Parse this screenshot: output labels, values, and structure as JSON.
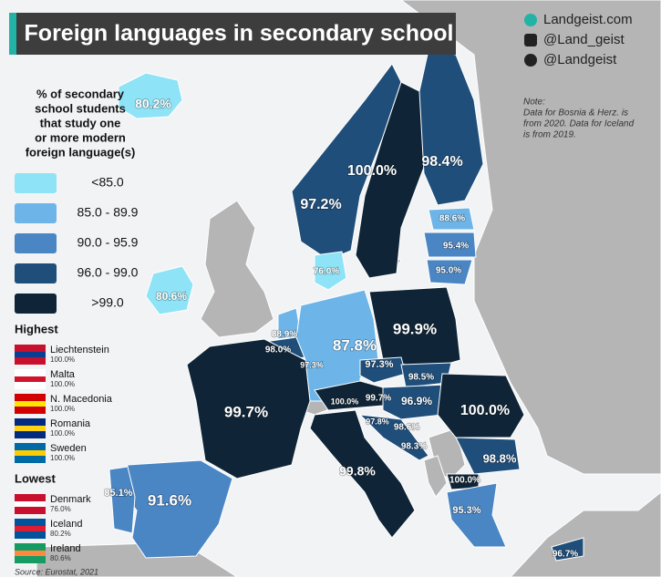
{
  "header": {
    "title": "Foreign languages in secondary school",
    "website": "Landgeist.com",
    "instagram": "@Land_geist",
    "twitter": "@Landgeist"
  },
  "note": [
    "Note:",
    "Data for Bosnia & Herz. is",
    "from 2020. Data for Iceland",
    "is from 2019."
  ],
  "legend": {
    "title": [
      "% of secondary",
      "school students",
      "that study one",
      "or more modern",
      "foreign language(s)"
    ],
    "items": [
      "<85.0",
      "85.0 - 89.9",
      "90.0 - 95.9",
      "96.0 - 99.0",
      ">99.0"
    ]
  },
  "highest": {
    "title": "Highest",
    "items": [
      {
        "name": "Liechtenstein",
        "value": "100.0%"
      },
      {
        "name": "Malta",
        "value": "100.0%"
      },
      {
        "name": "N. Macedonia",
        "value": "100.0%"
      },
      {
        "name": "Romania",
        "value": "100.0%"
      },
      {
        "name": "Sweden",
        "value": "100.0%"
      }
    ]
  },
  "lowest": {
    "title": "Lowest",
    "items": [
      {
        "name": "Denmark",
        "value": "76.0%"
      },
      {
        "name": "Iceland",
        "value": "80.2%"
      },
      {
        "name": "Ireland",
        "value": "80.6%"
      }
    ]
  },
  "regions": [
    "80.2%",
    "97.2%",
    "100.0%",
    "98.4%",
    "88.6%",
    "95.4%",
    "95.0%",
    "76.0%",
    "80.6%",
    "88.9%",
    "98.0%",
    "97.3%",
    "87.8%",
    "99.9%",
    "97.3%",
    "98.5%",
    "100.0%",
    "96.9%",
    "99.7%",
    "97.8%",
    "98.6%",
    "98.3%",
    "100.0%",
    "98.8%",
    "100.0%",
    "95.3%",
    "96.7%",
    "99.7%",
    "91.6%",
    "85.1%",
    "99.8%"
  ],
  "source": "Source: Eurostat, 2021"
}
